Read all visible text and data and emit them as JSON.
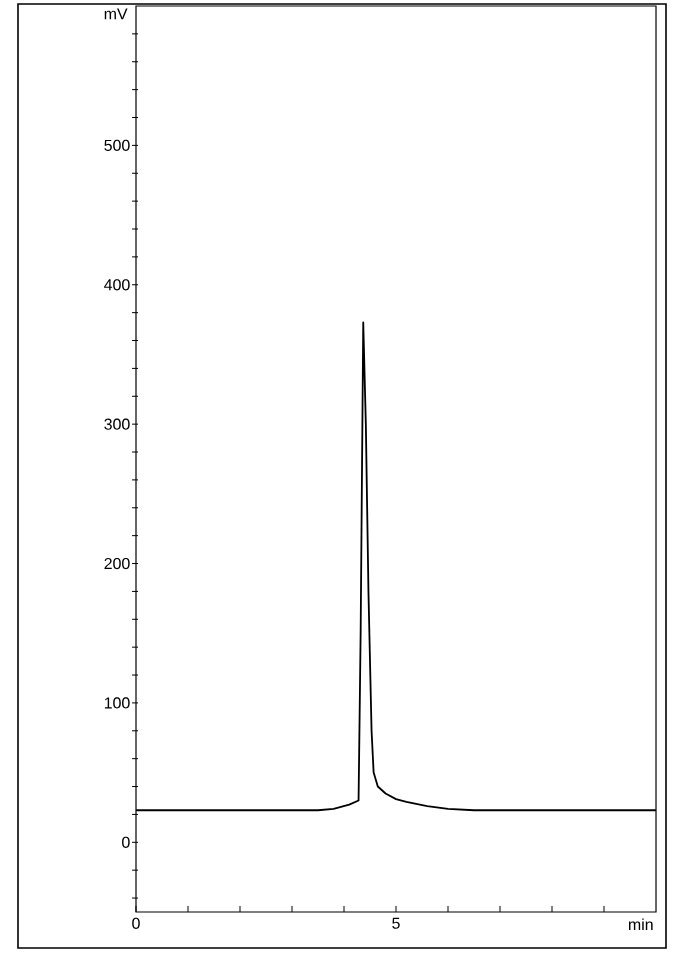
{
  "chart_data": {
    "type": "line",
    "xlabel": "min",
    "ylabel": "mV",
    "x": [
      0,
      1,
      2,
      3,
      3.5,
      3.8,
      4.1,
      4.28,
      4.32,
      4.37,
      4.42,
      4.47,
      4.53,
      4.57,
      4.65,
      4.8,
      5.0,
      5.2,
      5.6,
      6.0,
      6.5,
      7,
      8,
      9,
      10
    ],
    "series": [
      {
        "color": "#000000",
        "values": [
          23,
          23,
          23,
          23,
          23,
          24,
          27,
          30,
          150,
          373,
          300,
          180,
          80,
          50,
          40,
          35,
          31,
          29,
          26,
          24,
          23,
          23,
          23,
          23,
          23
        ]
      }
    ],
    "xlim": [
      0,
      10
    ],
    "ylim": [
      -50,
      600
    ],
    "xticks": [
      0,
      {
        "value": 1,
        "label": null
      },
      {
        "value": 2,
        "label": null
      },
      {
        "value": 3,
        "label": null
      },
      {
        "value": 4,
        "label": null
      },
      5,
      {
        "value": 6,
        "label": null
      },
      {
        "value": 7,
        "label": null
      },
      {
        "value": 8,
        "label": null
      },
      {
        "value": 9,
        "label": null
      }
    ],
    "yticks": [
      {
        "value": -40,
        "label": null
      },
      {
        "value": -20,
        "label": null
      },
      0,
      {
        "value": 20,
        "label": null
      },
      {
        "value": 40,
        "label": null
      },
      {
        "value": 60,
        "label": null
      },
      {
        "value": 80,
        "label": null
      },
      100,
      {
        "value": 120,
        "label": null
      },
      {
        "value": 140,
        "label": null
      },
      {
        "value": 160,
        "label": null
      },
      {
        "value": 180,
        "label": null
      },
      200,
      {
        "value": 220,
        "label": null
      },
      {
        "value": 240,
        "label": null
      },
      {
        "value": 260,
        "label": null
      },
      {
        "value": 280,
        "label": null
      },
      300,
      {
        "value": 320,
        "label": null
      },
      {
        "value": 340,
        "label": null
      },
      {
        "value": 360,
        "label": null
      },
      {
        "value": 380,
        "label": null
      },
      400,
      {
        "value": 420,
        "label": null
      },
      {
        "value": 440,
        "label": null
      },
      {
        "value": 460,
        "label": null
      },
      {
        "value": 480,
        "label": null
      },
      500,
      {
        "value": 520,
        "label": null
      },
      {
        "value": 540,
        "label": null
      },
      {
        "value": 560,
        "label": null
      },
      {
        "value": 580,
        "label": null
      }
    ],
    "grid": false,
    "marker": "none",
    "line_style": "solid"
  }
}
